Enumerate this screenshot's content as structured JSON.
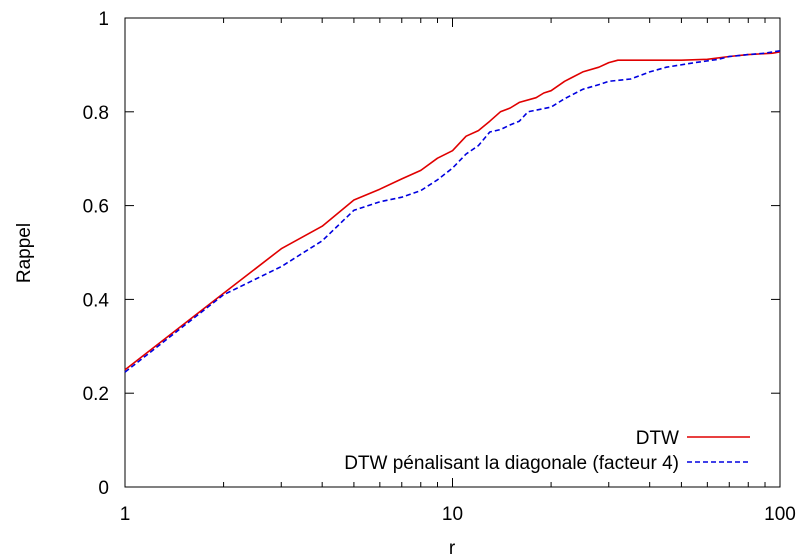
{
  "chart_data": {
    "type": "line",
    "title": "",
    "xlabel": "r",
    "ylabel": "Rappel",
    "xscale": "log",
    "xlim": [
      1,
      100
    ],
    "ylim": [
      0,
      1
    ],
    "xticks": [
      {
        "value": 1,
        "label": "1"
      },
      {
        "value": 10,
        "label": "10"
      },
      {
        "value": 100,
        "label": "100"
      }
    ],
    "yticks": [
      {
        "value": 0,
        "label": "0"
      },
      {
        "value": 0.2,
        "label": "0.2"
      },
      {
        "value": 0.4,
        "label": "0.4"
      },
      {
        "value": 0.6,
        "label": "0.6"
      },
      {
        "value": 0.8,
        "label": "0.8"
      },
      {
        "value": 1,
        "label": "1"
      }
    ],
    "grid": false,
    "legend_position": "bottom-right",
    "series": [
      {
        "name": "DTW",
        "color": "#e00000",
        "dash": "solid",
        "points": [
          [
            1,
            0.25
          ],
          [
            2,
            0.413
          ],
          [
            3,
            0.508
          ],
          [
            4,
            0.556
          ],
          [
            5,
            0.612
          ],
          [
            6,
            0.635
          ],
          [
            7,
            0.657
          ],
          [
            8,
            0.675
          ],
          [
            9,
            0.701
          ],
          [
            10,
            0.717
          ],
          [
            11,
            0.748
          ],
          [
            12,
            0.76
          ],
          [
            13,
            0.78
          ],
          [
            14,
            0.8
          ],
          [
            15,
            0.808
          ],
          [
            16,
            0.82
          ],
          [
            18,
            0.83
          ],
          [
            19,
            0.84
          ],
          [
            20,
            0.845
          ],
          [
            22,
            0.865
          ],
          [
            23,
            0.872
          ],
          [
            25,
            0.885
          ],
          [
            28,
            0.895
          ],
          [
            30,
            0.905
          ],
          [
            32,
            0.91
          ],
          [
            50,
            0.91
          ],
          [
            60,
            0.912
          ],
          [
            70,
            0.918
          ],
          [
            80,
            0.922
          ],
          [
            95,
            0.925
          ],
          [
            100,
            0.928
          ]
        ]
      },
      {
        "name": "DTW  pénalisant la diagonale (facteur 4)",
        "color": "#0000e0",
        "dash": "dashed",
        "points": [
          [
            1,
            0.245
          ],
          [
            2,
            0.41
          ],
          [
            3,
            0.47
          ],
          [
            4,
            0.525
          ],
          [
            5,
            0.59
          ],
          [
            6,
            0.608
          ],
          [
            7,
            0.618
          ],
          [
            8,
            0.632
          ],
          [
            9,
            0.655
          ],
          [
            10,
            0.68
          ],
          [
            11,
            0.71
          ],
          [
            12,
            0.728
          ],
          [
            13,
            0.757
          ],
          [
            14,
            0.762
          ],
          [
            15,
            0.772
          ],
          [
            16,
            0.78
          ],
          [
            17,
            0.8
          ],
          [
            20,
            0.81
          ],
          [
            22,
            0.828
          ],
          [
            25,
            0.848
          ],
          [
            28,
            0.858
          ],
          [
            30,
            0.865
          ],
          [
            35,
            0.87
          ],
          [
            40,
            0.885
          ],
          [
            45,
            0.895
          ],
          [
            55,
            0.905
          ],
          [
            65,
            0.912
          ],
          [
            70,
            0.918
          ],
          [
            80,
            0.922
          ],
          [
            90,
            0.925
          ],
          [
            100,
            0.93
          ]
        ]
      }
    ]
  }
}
